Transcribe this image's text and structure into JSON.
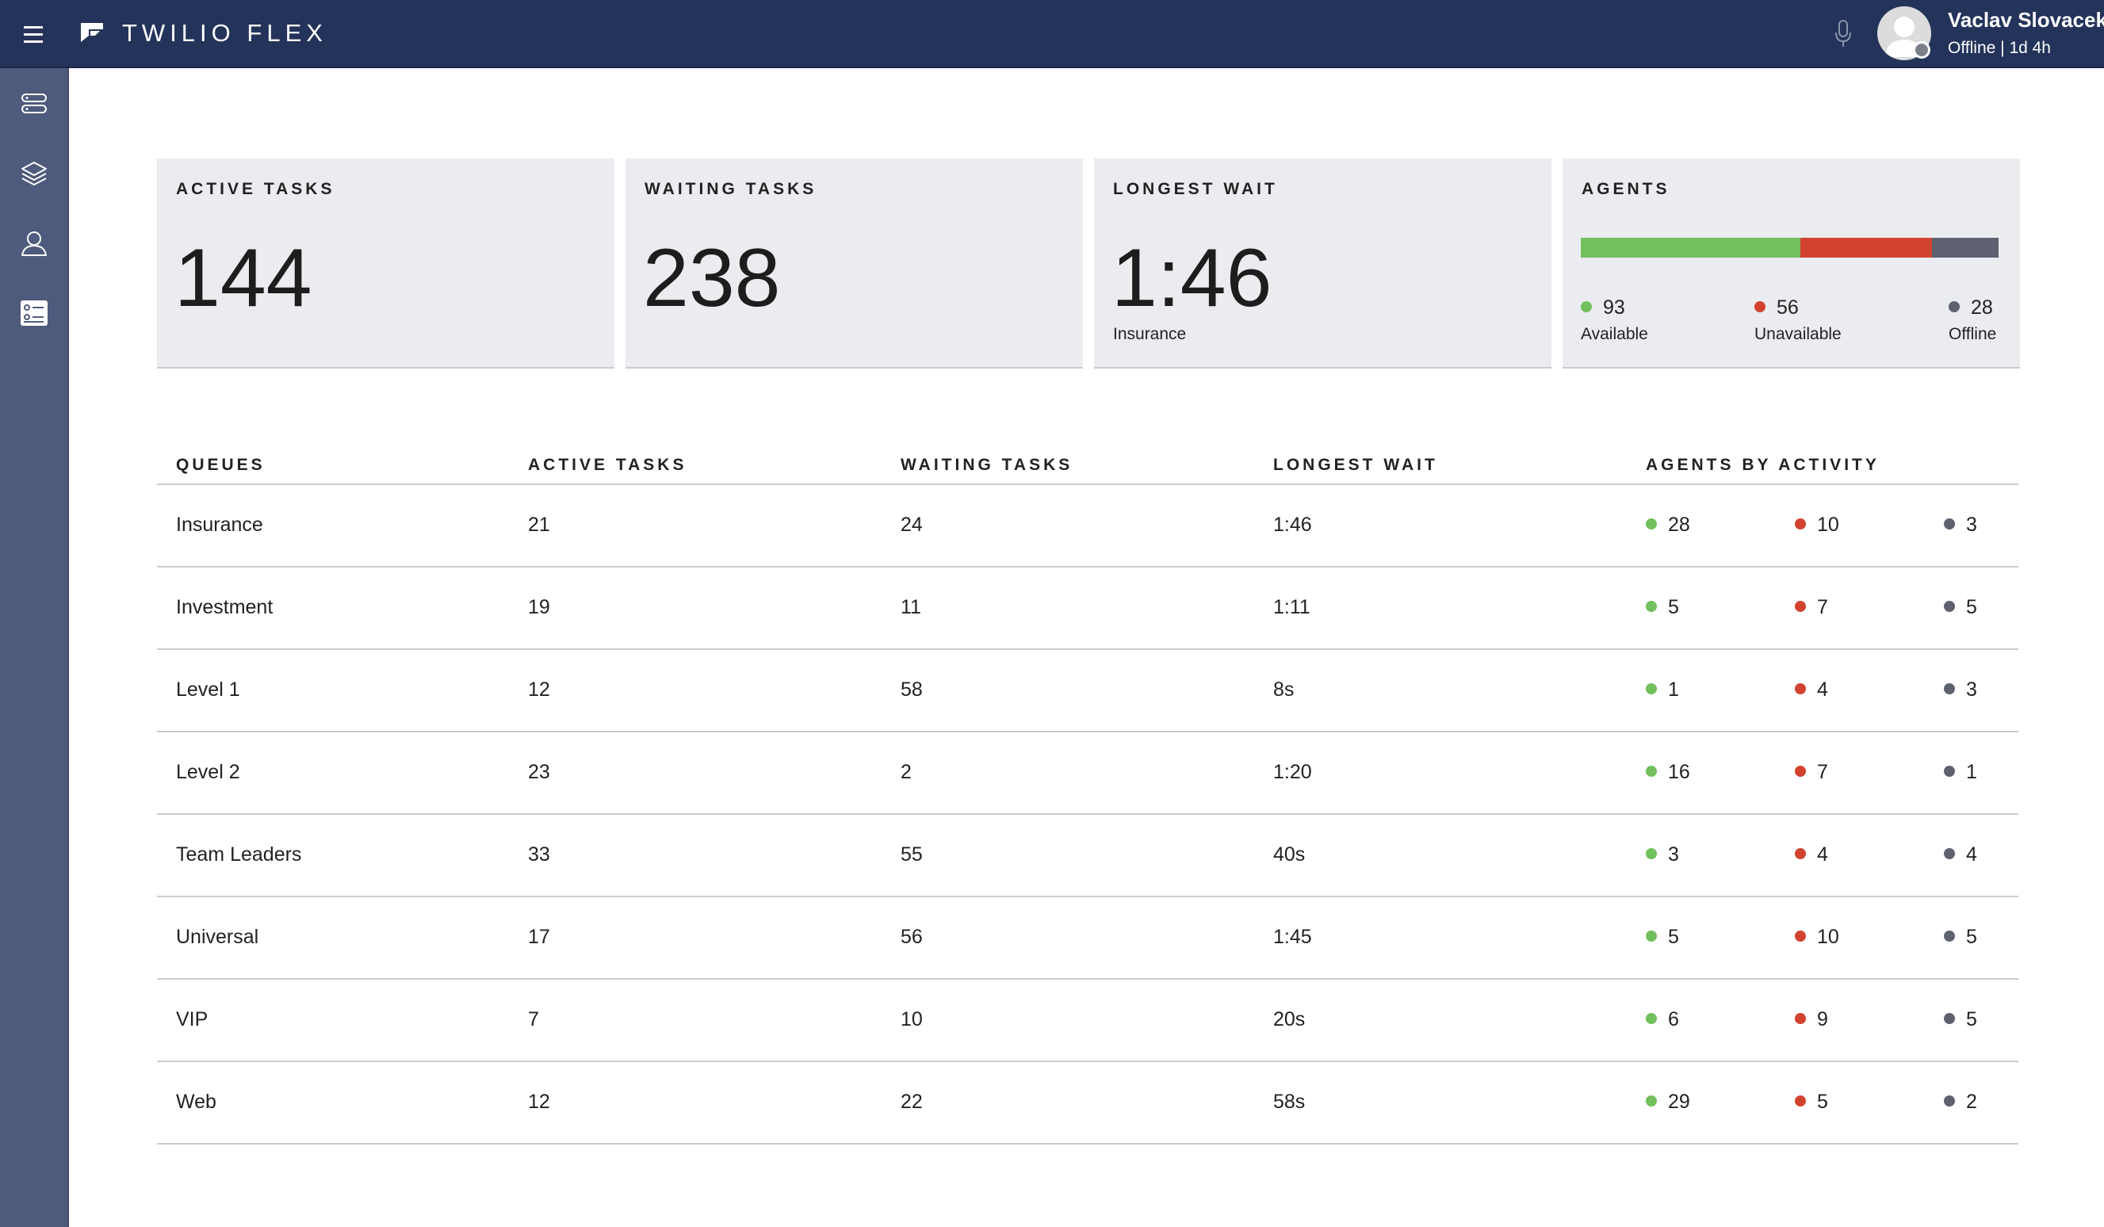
{
  "app": {
    "brand": "TWILIO FLEX"
  },
  "user": {
    "name": "Vaclav Slovacek",
    "status": "Offline | 1d 4h"
  },
  "colors": {
    "available": "#72bf5e",
    "unavailable": "#d1432f",
    "offline": "#5e6170",
    "topbar": "#24335a",
    "sidebar": "#4f5b7c"
  },
  "sidebar": {
    "items": [
      {
        "icon": "queues-icon"
      },
      {
        "icon": "layers-icon"
      },
      {
        "icon": "agents-icon"
      },
      {
        "icon": "dashboard-icon"
      }
    ]
  },
  "cards": {
    "active": {
      "title": "ACTIVE TASKS",
      "value": "144"
    },
    "waiting": {
      "title": "WAITING TASKS",
      "value": "238"
    },
    "longest": {
      "title": "LONGEST WAIT",
      "value": "1:46",
      "queue": "Insurance"
    },
    "agents": {
      "title": "AGENTS",
      "available": {
        "count": "93",
        "label": "Available",
        "share": 0.525
      },
      "unavailable": {
        "count": "56",
        "label": "Unavailable",
        "share": 0.316
      },
      "offline": {
        "count": "28",
        "label": "Offline",
        "share": 0.159
      }
    }
  },
  "table": {
    "headers": [
      "QUEUES",
      "ACTIVE TASKS",
      "WAITING TASKS",
      "LONGEST WAIT",
      "AGENTS BY ACTIVITY"
    ],
    "rows": [
      {
        "queue": "Insurance",
        "active": "21",
        "waiting": "24",
        "longest": "1:46",
        "available": "28",
        "unavailable": "10",
        "offline": "3"
      },
      {
        "queue": "Investment",
        "active": "19",
        "waiting": "11",
        "longest": "1:11",
        "available": "5",
        "unavailable": "7",
        "offline": "5"
      },
      {
        "queue": "Level 1",
        "active": "12",
        "waiting": "58",
        "longest": "8s",
        "available": "1",
        "unavailable": "4",
        "offline": "3"
      },
      {
        "queue": "Level 2",
        "active": "23",
        "waiting": "2",
        "longest": "1:20",
        "available": "16",
        "unavailable": "7",
        "offline": "1"
      },
      {
        "queue": "Team Leaders",
        "active": "33",
        "waiting": "55",
        "longest": "40s",
        "available": "3",
        "unavailable": "4",
        "offline": "4"
      },
      {
        "queue": "Universal",
        "active": "17",
        "waiting": "56",
        "longest": "1:45",
        "available": "5",
        "unavailable": "10",
        "offline": "5"
      },
      {
        "queue": "VIP",
        "active": "7",
        "waiting": "10",
        "longest": "20s",
        "available": "6",
        "unavailable": "9",
        "offline": "5"
      },
      {
        "queue": "Web",
        "active": "12",
        "waiting": "22",
        "longest": "58s",
        "available": "29",
        "unavailable": "5",
        "offline": "2"
      }
    ]
  }
}
